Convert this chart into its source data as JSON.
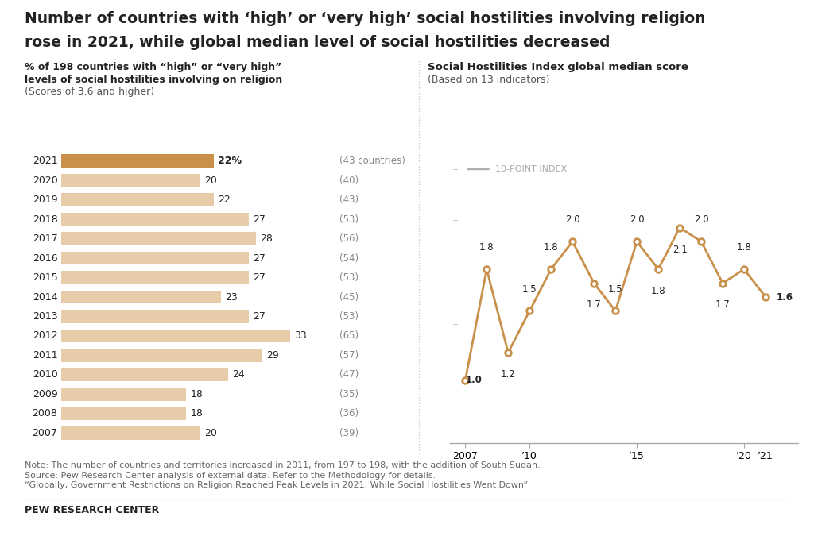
{
  "title_line1": "Number of countries with ‘high’ or ‘very high’ social hostilities involving religion",
  "title_line2": "rose in 2021, while global median level of social hostilities decreased",
  "bar_subtitle_line1": "% of 198 countries with “high” or “very high”",
  "bar_subtitle_line2": "levels of social hostilities involving on religion",
  "bar_subtitle_line3": "(Scores of 3.6 and higher)",
  "line_subtitle_line1": "Social Hostilities Index global median score",
  "line_subtitle_line2": "(Based on 13 indicators)",
  "bar_years": [
    2021,
    2020,
    2019,
    2018,
    2017,
    2016,
    2015,
    2014,
    2013,
    2012,
    2011,
    2010,
    2009,
    2008,
    2007
  ],
  "bar_values": [
    22,
    20,
    22,
    27,
    28,
    27,
    27,
    23,
    27,
    33,
    29,
    24,
    18,
    18,
    20
  ],
  "bar_countries": [
    "(43 countries)",
    "(40)",
    "(43)",
    "(53)",
    "(56)",
    "(54)",
    "(53)",
    "(45)",
    "(53)",
    "(65)",
    "(57)",
    "(47)",
    "(35)",
    "(36)",
    "(39)"
  ],
  "bar_color_highlight": "#c8904a",
  "bar_color_normal": "#e8cba8",
  "bar_highlight_year": 2021,
  "line_years": [
    2007,
    2008,
    2009,
    2010,
    2011,
    2012,
    2013,
    2014,
    2015,
    2016,
    2017,
    2018,
    2019,
    2020,
    2021
  ],
  "line_values": [
    1.0,
    1.8,
    1.2,
    1.5,
    1.8,
    2.0,
    1.7,
    1.5,
    2.0,
    1.8,
    2.1,
    2.0,
    1.7,
    1.8,
    1.6
  ],
  "line_color": "#c8904a",
  "line_index_label": "10-POINT INDEX",
  "label_offsets": {
    "2007": [
      0,
      0,
      "left",
      "center",
      true
    ],
    "2008": [
      0,
      0.12,
      "center",
      "bottom",
      false
    ],
    "2009": [
      0,
      -0.12,
      "center",
      "top",
      false
    ],
    "2010": [
      0,
      0.12,
      "center",
      "bottom",
      false
    ],
    "2011": [
      0,
      0.12,
      "center",
      "bottom",
      false
    ],
    "2012": [
      0,
      0.12,
      "center",
      "bottom",
      false
    ],
    "2013": [
      0,
      -0.12,
      "center",
      "top",
      false
    ],
    "2014": [
      0,
      0.12,
      "center",
      "bottom",
      false
    ],
    "2015": [
      0,
      0.12,
      "center",
      "bottom",
      false
    ],
    "2016": [
      0,
      -0.12,
      "center",
      "top",
      false
    ],
    "2017": [
      0,
      -0.12,
      "center",
      "top",
      false
    ],
    "2018": [
      0,
      0.12,
      "center",
      "bottom",
      false
    ],
    "2019": [
      0,
      -0.12,
      "center",
      "top",
      false
    ],
    "2020": [
      0,
      0.12,
      "center",
      "bottom",
      false
    ],
    "2021": [
      0.5,
      0,
      "left",
      "center",
      true
    ]
  },
  "note_line1": "Note: The number of countries and territories increased in 2011, from 197 to 198, with the addition of South Sudan.",
  "note_line2": "Source: Pew Research Center analysis of external data. Refer to the Methodology for details.",
  "note_line3": "“Globally, Government Restrictions on Religion Reached Peak Levels in 2021, While Social Hostilities Went Down”",
  "source_label": "PEW RESEARCH CENTER",
  "bg_color": "#ffffff",
  "text_color": "#222222",
  "note_color": "#666666"
}
